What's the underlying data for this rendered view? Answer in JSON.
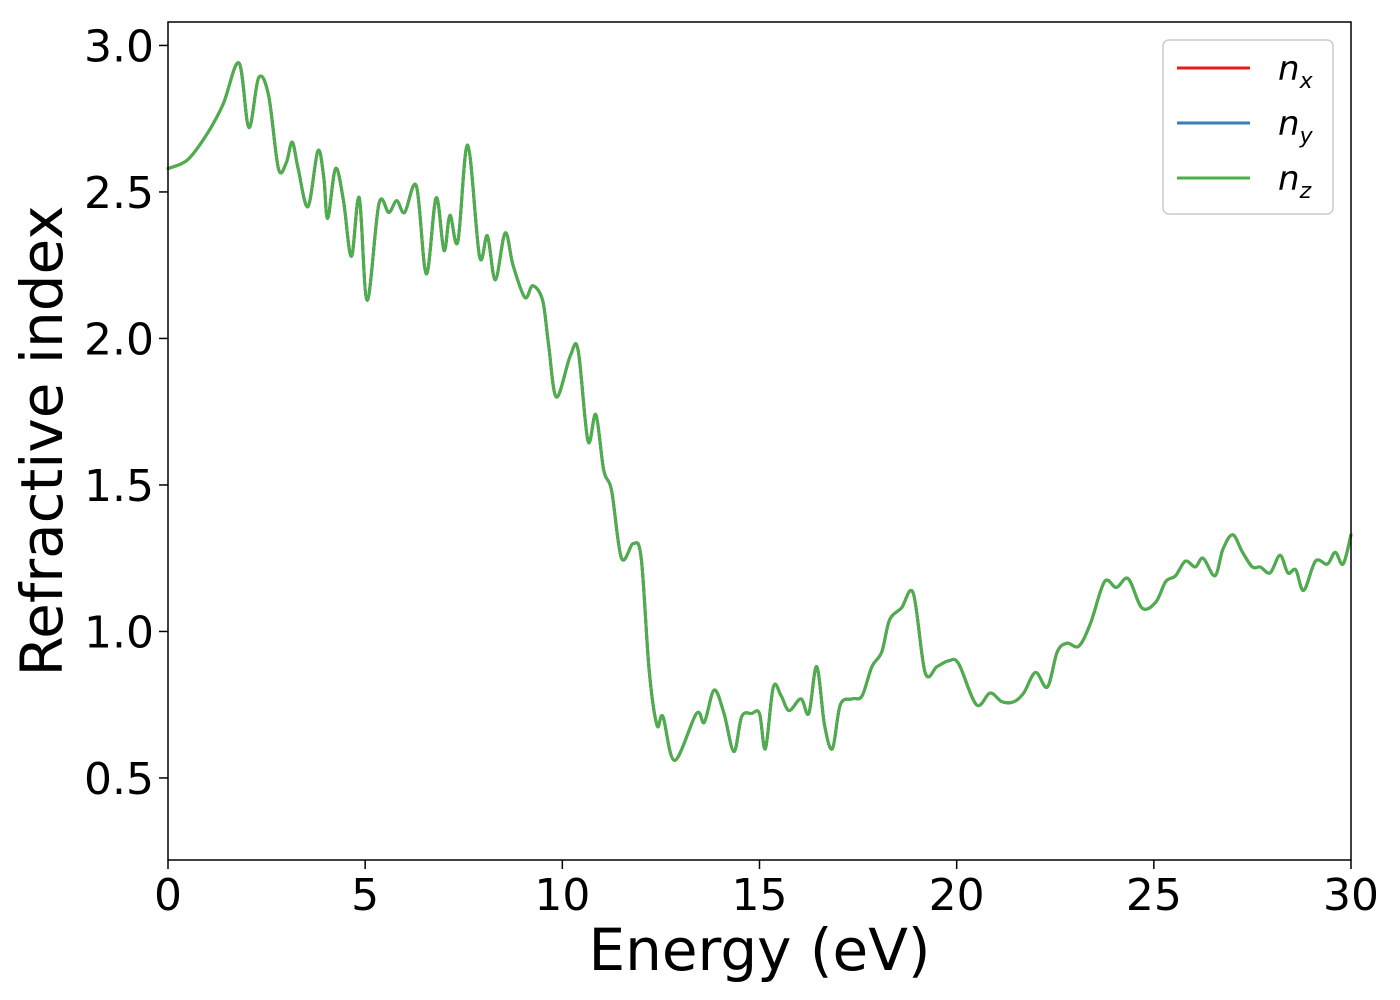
{
  "chart_data": {
    "type": "line",
    "xlabel": "Energy (eV)",
    "ylabel": "Refractive index",
    "xlim": [
      0,
      30
    ],
    "ylim": [
      0.22,
      3.08
    ],
    "x_ticks": [
      0,
      5,
      10,
      15,
      20,
      25,
      30
    ],
    "x_tick_labels": [
      "0",
      "5",
      "10",
      "15",
      "20",
      "25",
      "30"
    ],
    "y_ticks": [
      0.5,
      1.0,
      1.5,
      2.0,
      2.5,
      3.0
    ],
    "y_tick_labels": [
      "0.5",
      "1.0",
      "1.5",
      "2.0",
      "2.5",
      "3.0"
    ],
    "grid": false,
    "legend_position": "top-right",
    "x": [
      0,
      0.5,
      1.0,
      1.4,
      1.8,
      2.05,
      2.3,
      2.55,
      2.8,
      3.0,
      3.15,
      3.3,
      3.55,
      3.8,
      3.95,
      4.05,
      4.25,
      4.45,
      4.65,
      4.85,
      5.05,
      5.35,
      5.6,
      5.8,
      6.0,
      6.3,
      6.55,
      6.8,
      7.0,
      7.15,
      7.35,
      7.6,
      7.9,
      8.1,
      8.3,
      8.55,
      8.75,
      9.05,
      9.25,
      9.5,
      9.65,
      9.85,
      10.2,
      10.4,
      10.65,
      10.85,
      11.05,
      11.25,
      11.5,
      11.8,
      12.0,
      12.2,
      12.4,
      12.55,
      12.85,
      13.4,
      13.6,
      13.85,
      14.1,
      14.35,
      14.55,
      14.8,
      15.0,
      15.15,
      15.35,
      15.55,
      15.75,
      16.05,
      16.25,
      16.45,
      16.65,
      16.85,
      17.05,
      17.35,
      17.6,
      17.85,
      18.1,
      18.3,
      18.6,
      18.9,
      19.2,
      19.5,
      19.8,
      20.05,
      20.5,
      20.85,
      21.15,
      21.45,
      21.7,
      22.0,
      22.3,
      22.55,
      22.8,
      23.1,
      23.4,
      23.75,
      24.05,
      24.35,
      24.7,
      25.05,
      25.3,
      25.55,
      25.8,
      26.05,
      26.25,
      26.55,
      26.75,
      27.0,
      27.25,
      27.5,
      27.7,
      27.95,
      28.2,
      28.4,
      28.6,
      28.8,
      29.1,
      29.4,
      29.6,
      29.8,
      30.0
    ],
    "series": [
      {
        "name": "n_x",
        "color": "#e41a1c",
        "values": [
          2.58,
          2.61,
          2.7,
          2.8,
          2.94,
          2.72,
          2.89,
          2.83,
          2.58,
          2.6,
          2.67,
          2.58,
          2.45,
          2.64,
          2.55,
          2.41,
          2.58,
          2.47,
          2.28,
          2.48,
          2.13,
          2.46,
          2.43,
          2.47,
          2.43,
          2.52,
          2.22,
          2.48,
          2.3,
          2.42,
          2.33,
          2.66,
          2.28,
          2.35,
          2.2,
          2.36,
          2.25,
          2.14,
          2.18,
          2.13,
          1.98,
          1.8,
          1.94,
          1.96,
          1.65,
          1.74,
          1.55,
          1.48,
          1.25,
          1.3,
          1.25,
          0.87,
          0.68,
          0.71,
          0.56,
          0.72,
          0.69,
          0.8,
          0.72,
          0.59,
          0.71,
          0.72,
          0.72,
          0.6,
          0.81,
          0.78,
          0.73,
          0.77,
          0.72,
          0.88,
          0.68,
          0.6,
          0.75,
          0.77,
          0.78,
          0.88,
          0.93,
          1.04,
          1.08,
          1.13,
          0.86,
          0.88,
          0.9,
          0.89,
          0.75,
          0.79,
          0.76,
          0.76,
          0.79,
          0.86,
          0.81,
          0.93,
          0.96,
          0.95,
          1.03,
          1.17,
          1.15,
          1.18,
          1.08,
          1.1,
          1.17,
          1.19,
          1.24,
          1.22,
          1.25,
          1.19,
          1.28,
          1.33,
          1.27,
          1.22,
          1.22,
          1.2,
          1.26,
          1.2,
          1.21,
          1.14,
          1.24,
          1.23,
          1.27,
          1.23,
          1.33
        ]
      },
      {
        "name": "n_y",
        "color": "#377eb8",
        "values": [
          2.58,
          2.61,
          2.7,
          2.8,
          2.94,
          2.72,
          2.89,
          2.83,
          2.58,
          2.6,
          2.67,
          2.58,
          2.45,
          2.64,
          2.55,
          2.41,
          2.58,
          2.47,
          2.28,
          2.48,
          2.13,
          2.46,
          2.43,
          2.47,
          2.43,
          2.52,
          2.22,
          2.48,
          2.3,
          2.42,
          2.33,
          2.66,
          2.28,
          2.35,
          2.2,
          2.36,
          2.25,
          2.14,
          2.18,
          2.13,
          1.98,
          1.8,
          1.94,
          1.96,
          1.65,
          1.74,
          1.55,
          1.48,
          1.25,
          1.3,
          1.25,
          0.87,
          0.68,
          0.71,
          0.56,
          0.72,
          0.69,
          0.8,
          0.72,
          0.59,
          0.71,
          0.72,
          0.72,
          0.6,
          0.81,
          0.78,
          0.73,
          0.77,
          0.72,
          0.88,
          0.68,
          0.6,
          0.75,
          0.77,
          0.78,
          0.88,
          0.93,
          1.04,
          1.08,
          1.13,
          0.86,
          0.88,
          0.9,
          0.89,
          0.75,
          0.79,
          0.76,
          0.76,
          0.79,
          0.86,
          0.81,
          0.93,
          0.96,
          0.95,
          1.03,
          1.17,
          1.15,
          1.18,
          1.08,
          1.1,
          1.17,
          1.19,
          1.24,
          1.22,
          1.25,
          1.19,
          1.28,
          1.33,
          1.27,
          1.22,
          1.22,
          1.2,
          1.26,
          1.2,
          1.21,
          1.14,
          1.24,
          1.23,
          1.27,
          1.23,
          1.33
        ]
      },
      {
        "name": "n_z",
        "color": "#4daf4a",
        "values": [
          2.58,
          2.61,
          2.7,
          2.8,
          2.94,
          2.72,
          2.89,
          2.83,
          2.58,
          2.6,
          2.67,
          2.58,
          2.45,
          2.64,
          2.55,
          2.41,
          2.58,
          2.47,
          2.28,
          2.48,
          2.13,
          2.46,
          2.43,
          2.47,
          2.43,
          2.52,
          2.22,
          2.48,
          2.3,
          2.42,
          2.33,
          2.66,
          2.28,
          2.35,
          2.2,
          2.36,
          2.25,
          2.14,
          2.18,
          2.13,
          1.98,
          1.8,
          1.94,
          1.96,
          1.65,
          1.74,
          1.55,
          1.48,
          1.25,
          1.3,
          1.25,
          0.87,
          0.68,
          0.71,
          0.56,
          0.72,
          0.69,
          0.8,
          0.72,
          0.59,
          0.71,
          0.72,
          0.72,
          0.6,
          0.81,
          0.78,
          0.73,
          0.77,
          0.72,
          0.88,
          0.68,
          0.6,
          0.75,
          0.77,
          0.78,
          0.88,
          0.93,
          1.04,
          1.08,
          1.13,
          0.86,
          0.88,
          0.9,
          0.89,
          0.75,
          0.79,
          0.76,
          0.76,
          0.79,
          0.86,
          0.81,
          0.93,
          0.96,
          0.95,
          1.03,
          1.17,
          1.15,
          1.18,
          1.08,
          1.1,
          1.17,
          1.19,
          1.24,
          1.22,
          1.25,
          1.19,
          1.28,
          1.33,
          1.27,
          1.22,
          1.22,
          1.2,
          1.26,
          1.2,
          1.21,
          1.14,
          1.24,
          1.23,
          1.27,
          1.23,
          1.33
        ]
      }
    ],
    "legend": [
      {
        "base": "n",
        "sub": "x",
        "color": "#e41a1c"
      },
      {
        "base": "n",
        "sub": "y",
        "color": "#377eb8"
      },
      {
        "base": "n",
        "sub": "z",
        "color": "#4daf4a"
      }
    ]
  }
}
